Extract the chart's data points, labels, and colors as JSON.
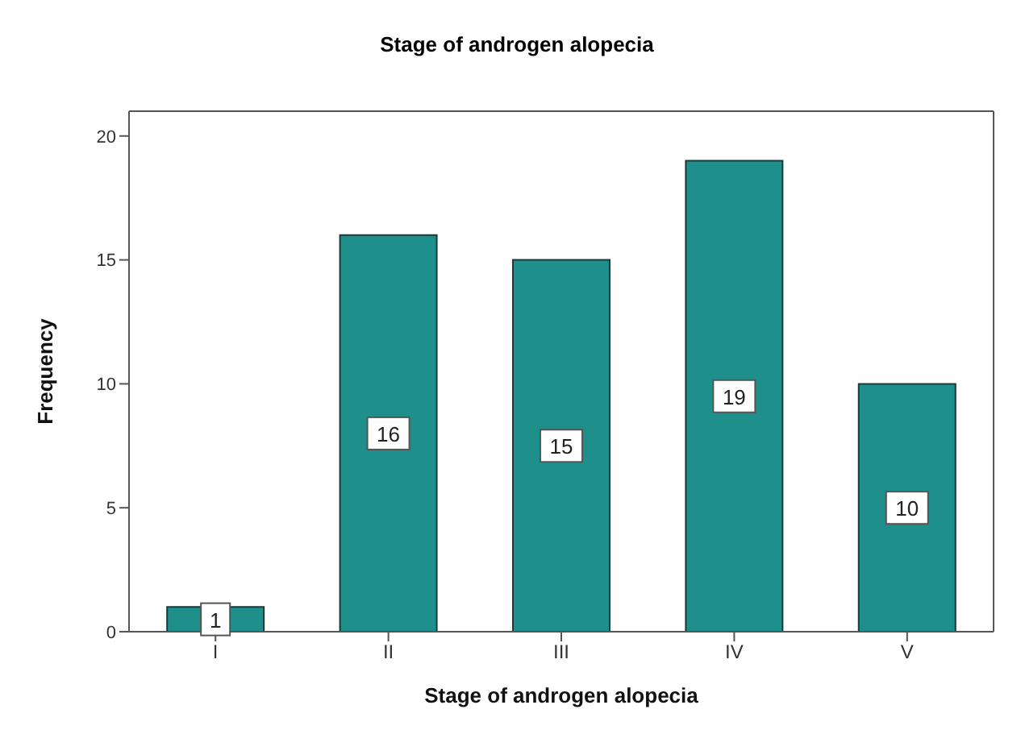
{
  "chart_data": {
    "type": "bar",
    "title": "Stage of androgen alopecia",
    "xlabel": "Stage of androgen alopecia",
    "ylabel": "Frequency",
    "categories": [
      "I",
      "II",
      "III",
      "IV",
      "V"
    ],
    "values": [
      1,
      16,
      15,
      19,
      10
    ],
    "color": "#1e8f8a",
    "ylim": [
      0,
      21
    ],
    "yticks": [
      0,
      5,
      10,
      15,
      20
    ],
    "grid": false,
    "data_labels": true
  }
}
